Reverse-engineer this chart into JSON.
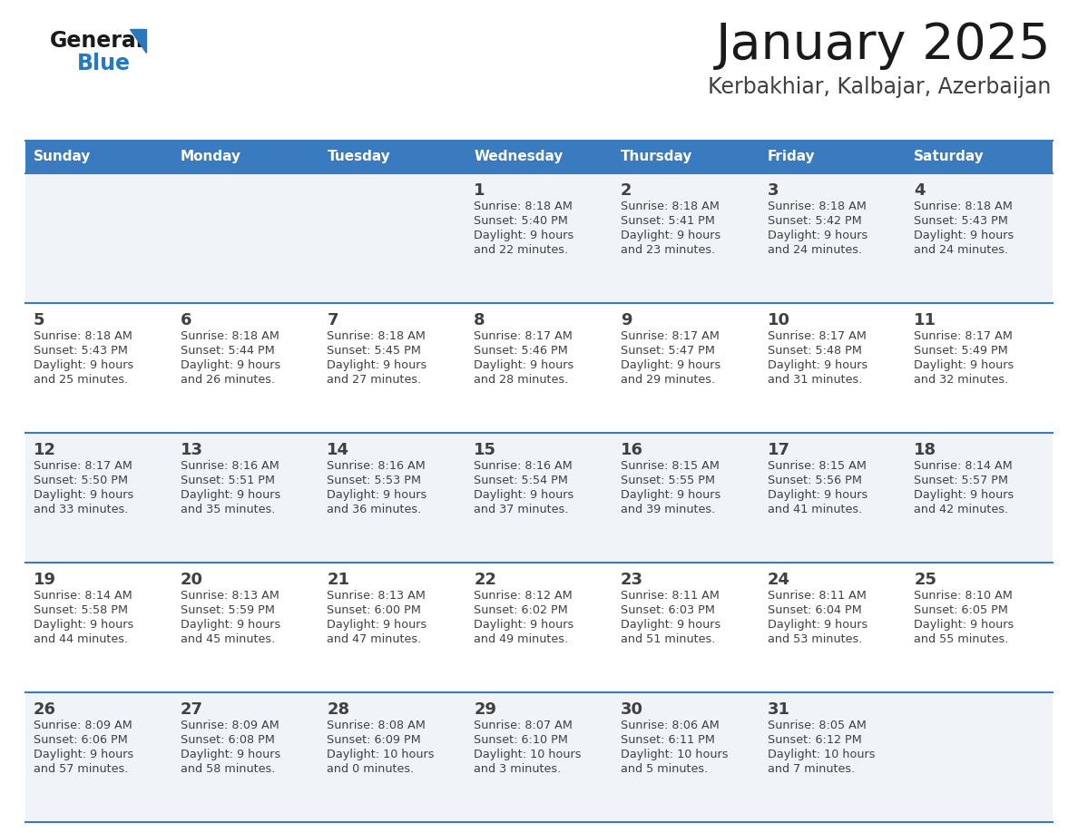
{
  "title": "January 2025",
  "subtitle": "Kerbakhiar, Kalbajar, Azerbaijan",
  "days_of_week": [
    "Sunday",
    "Monday",
    "Tuesday",
    "Wednesday",
    "Thursday",
    "Friday",
    "Saturday"
  ],
  "header_bg": "#3a7abf",
  "header_text": "#ffffff",
  "cell_bg_odd": "#f0f4f8",
  "cell_bg_even": "#ffffff",
  "border_color": "#3a7abf",
  "text_color": "#404040",
  "title_color": "#1a1a1a",
  "subtitle_color": "#404040",
  "logo_general_color": "#1a1a1a",
  "logo_blue_color": "#2878be",
  "calendar_data": [
    [
      {
        "day": null,
        "sunrise": null,
        "sunset": null,
        "daylight": null
      },
      {
        "day": null,
        "sunrise": null,
        "sunset": null,
        "daylight": null
      },
      {
        "day": null,
        "sunrise": null,
        "sunset": null,
        "daylight": null
      },
      {
        "day": 1,
        "sunrise": "8:18 AM",
        "sunset": "5:40 PM",
        "daylight": "9 hours\nand 22 minutes."
      },
      {
        "day": 2,
        "sunrise": "8:18 AM",
        "sunset": "5:41 PM",
        "daylight": "9 hours\nand 23 minutes."
      },
      {
        "day": 3,
        "sunrise": "8:18 AM",
        "sunset": "5:42 PM",
        "daylight": "9 hours\nand 24 minutes."
      },
      {
        "day": 4,
        "sunrise": "8:18 AM",
        "sunset": "5:43 PM",
        "daylight": "9 hours\nand 24 minutes."
      }
    ],
    [
      {
        "day": 5,
        "sunrise": "8:18 AM",
        "sunset": "5:43 PM",
        "daylight": "9 hours\nand 25 minutes."
      },
      {
        "day": 6,
        "sunrise": "8:18 AM",
        "sunset": "5:44 PM",
        "daylight": "9 hours\nand 26 minutes."
      },
      {
        "day": 7,
        "sunrise": "8:18 AM",
        "sunset": "5:45 PM",
        "daylight": "9 hours\nand 27 minutes."
      },
      {
        "day": 8,
        "sunrise": "8:17 AM",
        "sunset": "5:46 PM",
        "daylight": "9 hours\nand 28 minutes."
      },
      {
        "day": 9,
        "sunrise": "8:17 AM",
        "sunset": "5:47 PM",
        "daylight": "9 hours\nand 29 minutes."
      },
      {
        "day": 10,
        "sunrise": "8:17 AM",
        "sunset": "5:48 PM",
        "daylight": "9 hours\nand 31 minutes."
      },
      {
        "day": 11,
        "sunrise": "8:17 AM",
        "sunset": "5:49 PM",
        "daylight": "9 hours\nand 32 minutes."
      }
    ],
    [
      {
        "day": 12,
        "sunrise": "8:17 AM",
        "sunset": "5:50 PM",
        "daylight": "9 hours\nand 33 minutes."
      },
      {
        "day": 13,
        "sunrise": "8:16 AM",
        "sunset": "5:51 PM",
        "daylight": "9 hours\nand 35 minutes."
      },
      {
        "day": 14,
        "sunrise": "8:16 AM",
        "sunset": "5:53 PM",
        "daylight": "9 hours\nand 36 minutes."
      },
      {
        "day": 15,
        "sunrise": "8:16 AM",
        "sunset": "5:54 PM",
        "daylight": "9 hours\nand 37 minutes."
      },
      {
        "day": 16,
        "sunrise": "8:15 AM",
        "sunset": "5:55 PM",
        "daylight": "9 hours\nand 39 minutes."
      },
      {
        "day": 17,
        "sunrise": "8:15 AM",
        "sunset": "5:56 PM",
        "daylight": "9 hours\nand 41 minutes."
      },
      {
        "day": 18,
        "sunrise": "8:14 AM",
        "sunset": "5:57 PM",
        "daylight": "9 hours\nand 42 minutes."
      }
    ],
    [
      {
        "day": 19,
        "sunrise": "8:14 AM",
        "sunset": "5:58 PM",
        "daylight": "9 hours\nand 44 minutes."
      },
      {
        "day": 20,
        "sunrise": "8:13 AM",
        "sunset": "5:59 PM",
        "daylight": "9 hours\nand 45 minutes."
      },
      {
        "day": 21,
        "sunrise": "8:13 AM",
        "sunset": "6:00 PM",
        "daylight": "9 hours\nand 47 minutes."
      },
      {
        "day": 22,
        "sunrise": "8:12 AM",
        "sunset": "6:02 PM",
        "daylight": "9 hours\nand 49 minutes."
      },
      {
        "day": 23,
        "sunrise": "8:11 AM",
        "sunset": "6:03 PM",
        "daylight": "9 hours\nand 51 minutes."
      },
      {
        "day": 24,
        "sunrise": "8:11 AM",
        "sunset": "6:04 PM",
        "daylight": "9 hours\nand 53 minutes."
      },
      {
        "day": 25,
        "sunrise": "8:10 AM",
        "sunset": "6:05 PM",
        "daylight": "9 hours\nand 55 minutes."
      }
    ],
    [
      {
        "day": 26,
        "sunrise": "8:09 AM",
        "sunset": "6:06 PM",
        "daylight": "9 hours\nand 57 minutes."
      },
      {
        "day": 27,
        "sunrise": "8:09 AM",
        "sunset": "6:08 PM",
        "daylight": "9 hours\nand 58 minutes."
      },
      {
        "day": 28,
        "sunrise": "8:08 AM",
        "sunset": "6:09 PM",
        "daylight": "10 hours\nand 0 minutes."
      },
      {
        "day": 29,
        "sunrise": "8:07 AM",
        "sunset": "6:10 PM",
        "daylight": "10 hours\nand 3 minutes."
      },
      {
        "day": 30,
        "sunrise": "8:06 AM",
        "sunset": "6:11 PM",
        "daylight": "10 hours\nand 5 minutes."
      },
      {
        "day": 31,
        "sunrise": "8:05 AM",
        "sunset": "6:12 PM",
        "daylight": "10 hours\nand 7 minutes."
      },
      {
        "day": null,
        "sunrise": null,
        "sunset": null,
        "daylight": null
      }
    ]
  ]
}
